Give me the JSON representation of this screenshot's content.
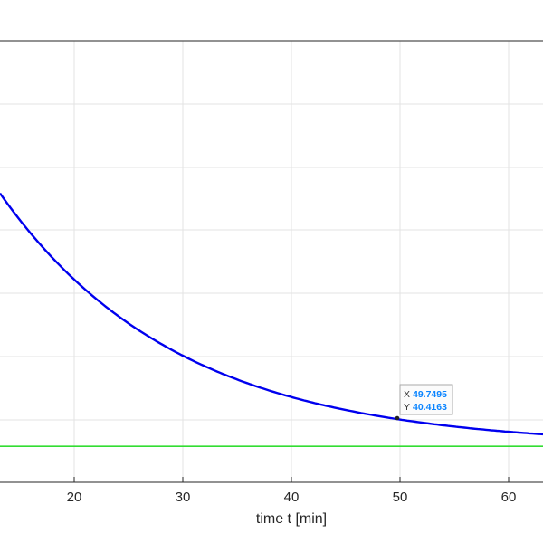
{
  "chart_data": {
    "type": "line",
    "xlabel": "time  t  [min]",
    "ylabel": "",
    "title": "",
    "grid": true,
    "x_ticks": [
      20,
      30,
      40,
      50,
      60
    ],
    "series": [
      {
        "color": "#0000ee",
        "x": [
          13,
          15,
          20,
          25,
          30,
          35,
          40,
          45,
          49.7495,
          55,
          60,
          63
        ],
        "y": [
          65.2,
          63.2,
          58.3,
          54.1,
          50.6,
          47.7,
          45.3,
          43.3,
          40.4163,
          40.6,
          39.6,
          39.1
        ]
      },
      {
        "color": "#33dd33",
        "x": [
          13,
          63
        ],
        "y": [
          37.3,
          37.3
        ]
      }
    ],
    "datatip": {
      "x_key": "X",
      "x_value": "49.7495",
      "y_key": "Y",
      "y_value": "40.4163"
    }
  }
}
